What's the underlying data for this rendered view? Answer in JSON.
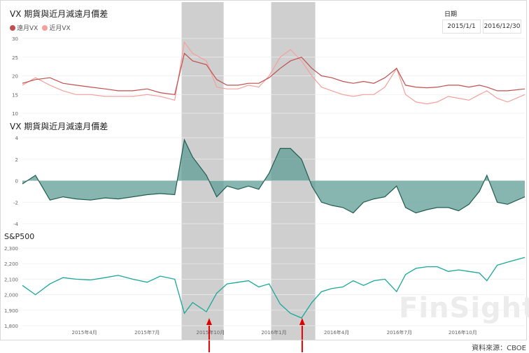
{
  "titles": {
    "top": "VX 期貨與近月減遠月價差",
    "middle": "VX 期貨與近月減遠月價差",
    "bottom": "S&P500"
  },
  "slicer": {
    "label": "日期",
    "start": "2015/1/1",
    "end": "2016/12/30"
  },
  "source": "資料來源：CBOE",
  "watermark": "FinSight",
  "colors": {
    "far": "#c0504d",
    "near": "#f4a09c",
    "spread_line": "#1f5c4f",
    "spread_fill": "#5f9e96",
    "sp500": "#17a899",
    "shade": "#cfcfcf",
    "arrow": "#e00000"
  },
  "chart_data": [
    {
      "type": "line",
      "title": "VX 期貨與近月減遠月價差",
      "legend": "top-left",
      "series": [
        {
          "name": "遠月VX",
          "x": [
            "2015-01-01",
            "2015-01-20",
            "2015-02-10",
            "2015-03-01",
            "2015-03-20",
            "2015-04-10",
            "2015-05-01",
            "2015-05-20",
            "2015-06-10",
            "2015-07-01",
            "2015-07-20",
            "2015-08-10",
            "2015-08-24",
            "2015-09-05",
            "2015-09-25",
            "2015-10-10",
            "2015-10-25",
            "2015-11-10",
            "2015-11-25",
            "2015-12-10",
            "2015-12-25",
            "2016-01-10",
            "2016-01-25",
            "2016-02-10",
            "2016-02-25",
            "2016-03-10",
            "2016-03-25",
            "2016-04-10",
            "2016-04-25",
            "2016-05-10",
            "2016-05-25",
            "2016-06-10",
            "2016-06-27",
            "2016-07-10",
            "2016-07-25",
            "2016-08-10",
            "2016-08-25",
            "2016-09-10",
            "2016-09-25",
            "2016-10-10",
            "2016-10-25",
            "2016-11-05",
            "2016-11-20",
            "2016-12-05",
            "2016-12-30"
          ],
          "values": [
            18,
            19,
            19.5,
            18,
            17.5,
            17,
            16.5,
            16,
            16,
            16.5,
            15.5,
            15,
            26,
            24,
            23,
            19,
            17.5,
            17.5,
            18,
            18,
            19.5,
            22,
            24,
            25,
            22,
            20,
            19.5,
            18.5,
            18,
            18.5,
            18,
            19.5,
            22,
            17.5,
            17,
            16.8,
            17,
            17.5,
            17.5,
            17,
            17.5,
            17,
            16,
            16,
            16.5
          ]
        },
        {
          "name": "近月VX",
          "x": [
            "2015-01-01",
            "2015-01-20",
            "2015-02-10",
            "2015-03-01",
            "2015-03-20",
            "2015-04-10",
            "2015-05-01",
            "2015-05-20",
            "2015-06-10",
            "2015-07-01",
            "2015-07-20",
            "2015-08-10",
            "2015-08-24",
            "2015-09-05",
            "2015-09-25",
            "2015-10-10",
            "2015-10-25",
            "2015-11-10",
            "2015-11-25",
            "2015-12-10",
            "2015-12-25",
            "2016-01-10",
            "2016-01-25",
            "2016-02-10",
            "2016-02-25",
            "2016-03-10",
            "2016-03-25",
            "2016-04-10",
            "2016-04-25",
            "2016-05-10",
            "2016-05-25",
            "2016-06-10",
            "2016-06-27",
            "2016-07-10",
            "2016-07-25",
            "2016-08-10",
            "2016-08-25",
            "2016-09-10",
            "2016-09-25",
            "2016-10-10",
            "2016-10-25",
            "2016-11-05",
            "2016-11-20",
            "2016-12-05",
            "2016-12-30"
          ],
          "values": [
            17.5,
            19.5,
            17.5,
            16,
            15,
            15,
            14.5,
            14.5,
            14.5,
            15,
            14.5,
            13.5,
            29,
            26,
            24,
            17,
            16.5,
            16.5,
            17.5,
            17,
            20,
            25,
            27,
            24,
            20,
            17,
            16,
            15,
            14.5,
            15,
            15,
            17,
            22,
            15,
            13,
            12.5,
            13,
            14.5,
            14,
            13.5,
            15,
            16,
            14,
            13,
            15
          ]
        }
      ],
      "ylim": [
        10,
        30
      ],
      "yticks": [
        10,
        15,
        20,
        25,
        30
      ]
    },
    {
      "type": "area",
      "title": "VX 期貨與近月減遠月價差",
      "series": [
        {
          "x": [
            "2015-01-01",
            "2015-01-20",
            "2015-02-10",
            "2015-03-01",
            "2015-03-20",
            "2015-04-10",
            "2015-05-01",
            "2015-05-20",
            "2015-06-10",
            "2015-07-01",
            "2015-07-20",
            "2015-08-10",
            "2015-08-24",
            "2015-09-05",
            "2015-09-25",
            "2015-10-10",
            "2015-10-25",
            "2015-11-10",
            "2015-11-25",
            "2015-12-10",
            "2015-12-25",
            "2016-01-10",
            "2016-01-25",
            "2016-02-10",
            "2016-02-25",
            "2016-03-10",
            "2016-03-25",
            "2016-04-10",
            "2016-04-25",
            "2016-05-10",
            "2016-05-25",
            "2016-06-10",
            "2016-06-27",
            "2016-07-10",
            "2016-07-25",
            "2016-08-10",
            "2016-08-25",
            "2016-09-10",
            "2016-09-25",
            "2016-10-10",
            "2016-10-25",
            "2016-11-05",
            "2016-11-20",
            "2016-12-05",
            "2016-12-30"
          ],
          "values": [
            -0.3,
            0.5,
            -1.8,
            -1.5,
            -1.7,
            -1.8,
            -1.6,
            -1.7,
            -1.5,
            -1.3,
            -1.2,
            -1.3,
            3.8,
            2.2,
            0.5,
            -1.5,
            -0.5,
            -0.8,
            -0.5,
            -0.8,
            0.7,
            3.0,
            3.0,
            2.0,
            -0.5,
            -2.0,
            -2.3,
            -2.5,
            -3.0,
            -2.0,
            -1.7,
            -1.5,
            -0.5,
            -2.5,
            -3.0,
            -2.7,
            -2.5,
            -2.5,
            -2.8,
            -2.2,
            -1.0,
            0.5,
            -2.0,
            -2.2,
            -1.5
          ]
        }
      ],
      "ylim": [
        -4,
        4
      ],
      "yticks": [
        -4,
        -2,
        0,
        2,
        4
      ]
    },
    {
      "type": "line",
      "title": "S&P500",
      "series": [
        {
          "x": [
            "2015-01-01",
            "2015-01-20",
            "2015-02-10",
            "2015-03-01",
            "2015-03-20",
            "2015-04-10",
            "2015-05-01",
            "2015-05-20",
            "2015-06-10",
            "2015-07-01",
            "2015-07-20",
            "2015-08-10",
            "2015-08-24",
            "2015-09-05",
            "2015-09-25",
            "2015-10-10",
            "2015-10-25",
            "2015-11-10",
            "2015-11-25",
            "2015-12-10",
            "2015-12-25",
            "2016-01-10",
            "2016-01-25",
            "2016-02-10",
            "2016-02-25",
            "2016-03-10",
            "2016-03-25",
            "2016-04-10",
            "2016-04-25",
            "2016-05-10",
            "2016-05-25",
            "2016-06-10",
            "2016-06-27",
            "2016-07-10",
            "2016-07-25",
            "2016-08-10",
            "2016-08-25",
            "2016-09-10",
            "2016-09-25",
            "2016-10-10",
            "2016-10-25",
            "2016-11-05",
            "2016-11-20",
            "2016-12-05",
            "2016-12-30"
          ],
          "values": [
            2060,
            2000,
            2070,
            2110,
            2100,
            2095,
            2110,
            2125,
            2100,
            2080,
            2120,
            2100,
            1880,
            1950,
            1890,
            2010,
            2070,
            2080,
            2090,
            2050,
            2070,
            1940,
            1880,
            1850,
            1950,
            2020,
            2040,
            2050,
            2090,
            2060,
            2090,
            2100,
            2020,
            2130,
            2170,
            2180,
            2180,
            2150,
            2160,
            2150,
            2140,
            2090,
            2190,
            2210,
            2240
          ]
        }
      ],
      "ylim": [
        1800,
        2300
      ],
      "yticks": [
        1800,
        1900,
        2000,
        2100,
        2200,
        2300
      ],
      "ytick_labels": [
        "1,800",
        "1,900",
        "2,000",
        "2,100",
        "2,200",
        "2,300"
      ]
    }
  ],
  "x_axis": {
    "ticks": [
      "2015-04-01",
      "2015-07-01",
      "2015-10-01",
      "2016-01-01",
      "2016-04-01",
      "2016-07-01",
      "2016-10-01"
    ],
    "labels": [
      "2015年4月",
      "2015年7月",
      "2015年10月",
      "2016年1月",
      "2016年4月",
      "2016年7月",
      "2016年10月"
    ]
  },
  "shaded_periods": [
    {
      "start": "2015-08-20",
      "end": "2015-10-20"
    },
    {
      "start": "2015-12-28",
      "end": "2016-03-01"
    }
  ],
  "arrows": [
    "2015-09-29",
    "2016-02-11"
  ]
}
